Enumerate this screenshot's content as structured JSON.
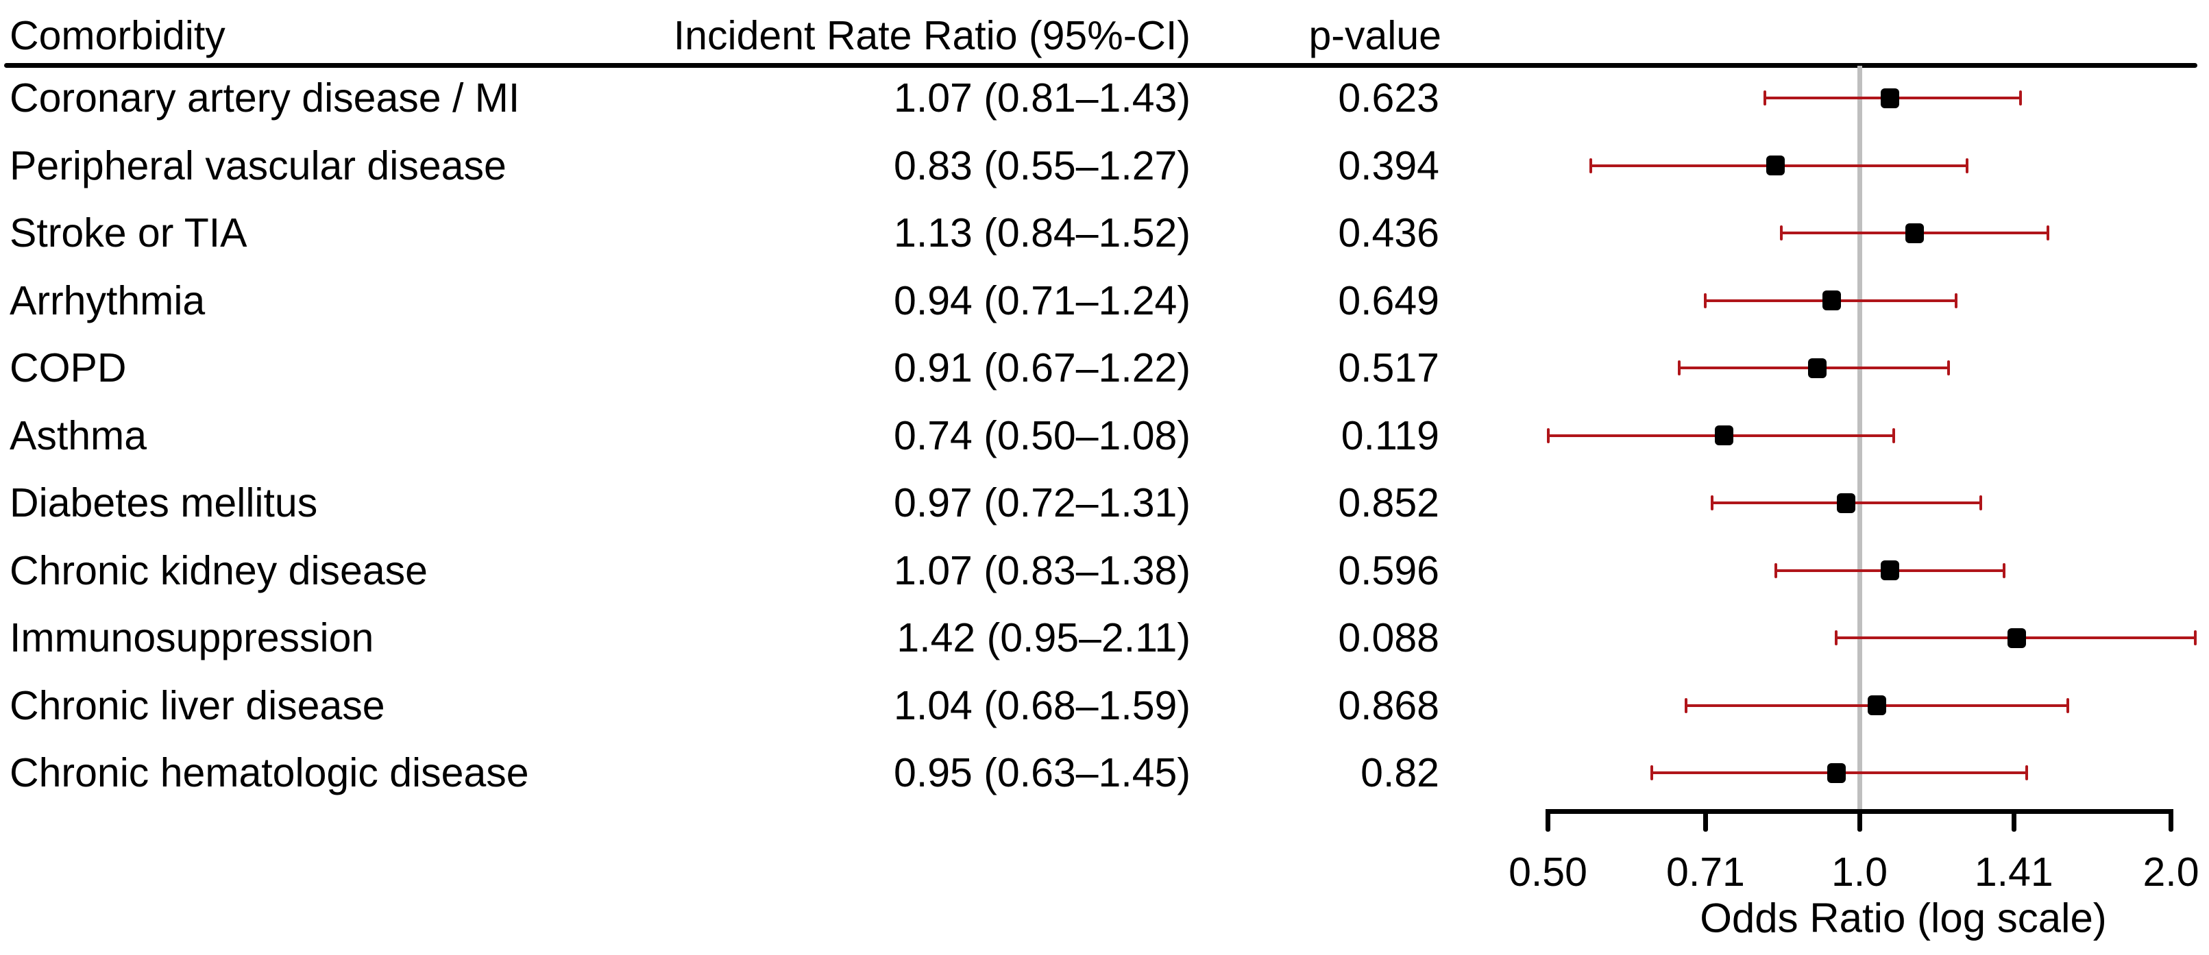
{
  "table": {
    "headers": [
      "Comorbidity",
      "Incident Rate Ratio (95%-CI)",
      "p-value"
    ],
    "rows": [
      {
        "label": "Coronary artery disease / MI",
        "irr_text": "1.07 (0.81–1.43)",
        "p_value": "0.623"
      },
      {
        "label": "Peripheral vascular disease",
        "irr_text": "0.83 (0.55–1.27)",
        "p_value": "0.394"
      },
      {
        "label": "Stroke or TIA",
        "irr_text": "1.13 (0.84–1.52)",
        "p_value": "0.436"
      },
      {
        "label": "Arrhythmia",
        "irr_text": "0.94 (0.71–1.24)",
        "p_value": "0.649"
      },
      {
        "label": "COPD",
        "irr_text": "0.91 (0.67–1.22)",
        "p_value": "0.517"
      },
      {
        "label": "Asthma",
        "irr_text": "0.74 (0.50–1.08)",
        "p_value": "0.119"
      },
      {
        "label": "Diabetes mellitus",
        "irr_text": "0.97 (0.72–1.31)",
        "p_value": "0.852"
      },
      {
        "label": "Chronic kidney disease",
        "irr_text": "1.07 (0.83–1.38)",
        "p_value": "0.596"
      },
      {
        "label": "Immunosuppression",
        "irr_text": "1.42 (0.95–2.11)",
        "p_value": "0.088"
      },
      {
        "label": "Chronic liver disease",
        "irr_text": "1.04 (0.68–1.59)",
        "p_value": "0.868"
      },
      {
        "label": "Chronic hematologic disease",
        "irr_text": "0.95 (0.63–1.45)",
        "p_value": "0.82"
      }
    ]
  },
  "chart_data": {
    "type": "scatter",
    "variant": "forest-plot",
    "xlabel": "Odds Ratio (log scale)",
    "x_scale": "log2",
    "xlim": [
      0.5,
      2.0
    ],
    "x_ticks": [
      0.5,
      0.71,
      1.0,
      1.41,
      2.0
    ],
    "x_tick_labels": [
      "0.50",
      "0.71",
      "1.0",
      "1.41",
      "2.0"
    ],
    "reference_line_x": 1.0,
    "grid": false,
    "categories": [
      "Coronary artery disease / MI",
      "Peripheral vascular disease",
      "Stroke or TIA",
      "Arrhythmia",
      "COPD",
      "Asthma",
      "Diabetes mellitus",
      "Chronic kidney disease",
      "Immunosuppression",
      "Chronic liver disease",
      "Chronic hematologic disease"
    ],
    "points": [
      {
        "estimate": 1.07,
        "ci_low": 0.81,
        "ci_high": 1.43,
        "p_value": 0.623
      },
      {
        "estimate": 0.83,
        "ci_low": 0.55,
        "ci_high": 1.27,
        "p_value": 0.394
      },
      {
        "estimate": 1.13,
        "ci_low": 0.84,
        "ci_high": 1.52,
        "p_value": 0.436
      },
      {
        "estimate": 0.94,
        "ci_low": 0.71,
        "ci_high": 1.24,
        "p_value": 0.649
      },
      {
        "estimate": 0.91,
        "ci_low": 0.67,
        "ci_high": 1.22,
        "p_value": 0.517
      },
      {
        "estimate": 0.74,
        "ci_low": 0.5,
        "ci_high": 1.08,
        "p_value": 0.119
      },
      {
        "estimate": 0.97,
        "ci_low": 0.72,
        "ci_high": 1.31,
        "p_value": 0.852
      },
      {
        "estimate": 1.07,
        "ci_low": 0.83,
        "ci_high": 1.38,
        "p_value": 0.596
      },
      {
        "estimate": 1.42,
        "ci_low": 0.95,
        "ci_high": 2.11,
        "p_value": 0.088
      },
      {
        "estimate": 1.04,
        "ci_low": 0.68,
        "ci_high": 1.59,
        "p_value": 0.868
      },
      {
        "estimate": 0.95,
        "ci_low": 0.63,
        "ci_high": 1.45,
        "p_value": 0.82
      }
    ]
  },
  "colors": {
    "ci_bar": "#B0151A",
    "marker": "#000000",
    "reference_line": "#BFBFBF",
    "axis": "#000000"
  }
}
